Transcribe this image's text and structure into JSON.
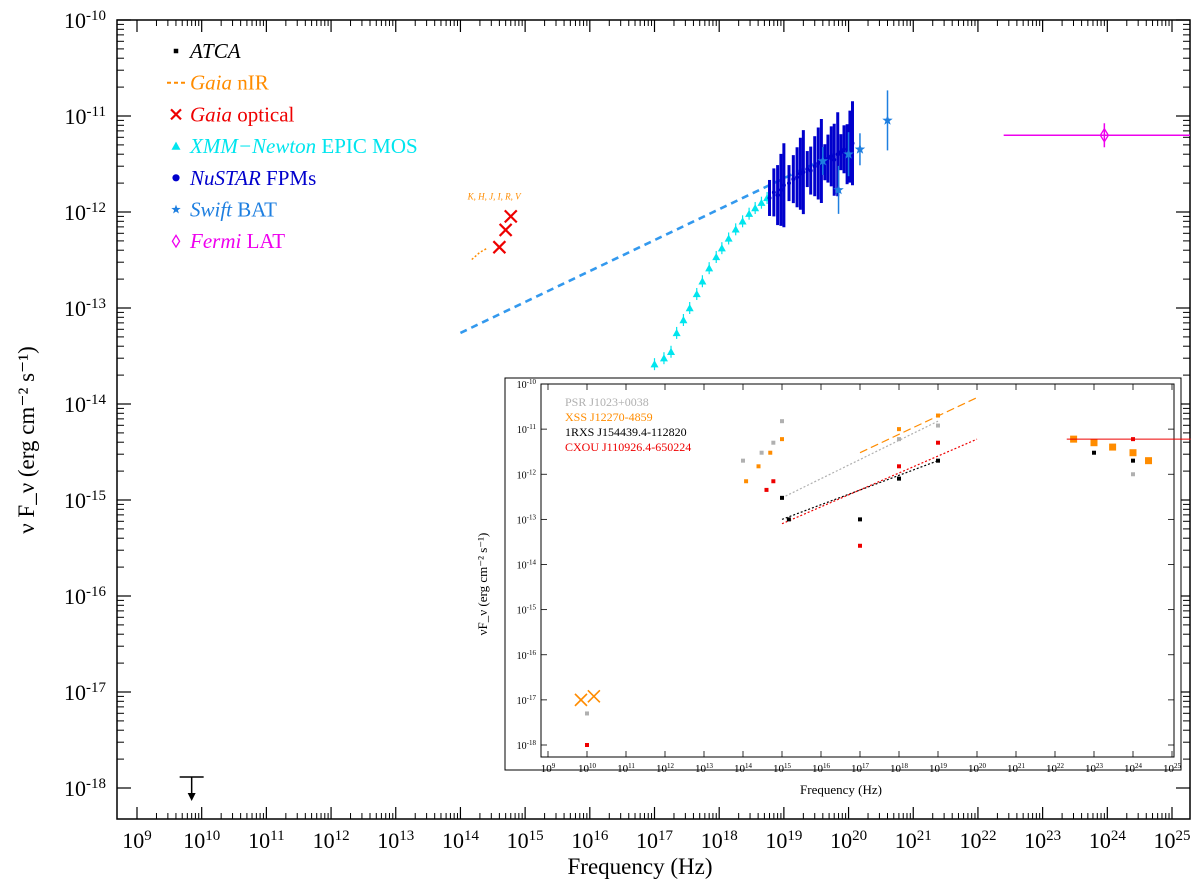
{
  "chart_data": [
    {
      "type": "scatter",
      "title": "",
      "xlabel": "Frequency (Hz)",
      "ylabel": "ν F_ν (erg cm⁻² s⁻¹)",
      "x_scale": "log",
      "y_scale": "log",
      "xlim": [
        1000000000.0,
        1e+25
      ],
      "ylim": [
        1e-18,
        1e-10
      ],
      "x_ticks": [
        "10^9",
        "10^10",
        "10^11",
        "10^12",
        "10^13",
        "10^14",
        "10^15",
        "10^16",
        "10^17",
        "10^18",
        "10^19",
        "10^20",
        "10^21",
        "10^22",
        "10^23",
        "10^24",
        "10^25"
      ],
      "y_ticks": [
        "10^-18",
        "10^-17",
        "10^-16",
        "10^-15",
        "10^-14",
        "10^-13",
        "10^-12",
        "10^-11",
        "10^-10"
      ],
      "legend_position": "top-left",
      "colors": {
        "atca": "#000000",
        "gaia_nir": "#ff8c00",
        "gaia_opt": "#ee0000",
        "xmm": "#00e5ee",
        "nustar": "#0000cc",
        "swift": "#1e7fe0",
        "fermi": "#ee00ee",
        "fit": "#3399ee"
      },
      "legend": [
        {
          "key": "atca",
          "marker": "square",
          "italic": "ATCA",
          "text": ""
        },
        {
          "key": "gaia_nir",
          "marker": "dash",
          "italic": "Gaia",
          "text": "nIR"
        },
        {
          "key": "gaia_opt",
          "marker": "cross",
          "italic": "Gaia",
          "text": "optical"
        },
        {
          "key": "xmm",
          "marker": "triangle",
          "italic": "XMM−Newton",
          "text": "EPIC MOS"
        },
        {
          "key": "nustar",
          "marker": "circle",
          "italic": "NuSTAR",
          "text": "FPMs"
        },
        {
          "key": "swift",
          "marker": "star",
          "italic": "Swift",
          "text": "BAT"
        },
        {
          "key": "fermi",
          "marker": "diamond",
          "italic": "Fermi",
          "text": "LAT"
        }
      ],
      "band_label": "K, H, J, I, R, V",
      "series": [
        {
          "name": "ATCA",
          "key": "atca",
          "upper_limit": true,
          "points": [
            [
              7000000000.0,
              1.3e-18
            ]
          ]
        },
        {
          "name": "Gaia nIR",
          "key": "gaia_nir",
          "points": [
            [
              150000000000000.0,
              3.2e-13
            ],
            [
              200000000000000.0,
              3.8e-13
            ],
            [
              260000000000000.0,
              4.2e-13
            ]
          ]
        },
        {
          "name": "Gaia optical",
          "key": "gaia_opt",
          "points": [
            [
              400000000000000.0,
              4.3e-13
            ],
            [
              500000000000000.0,
              6.5e-13
            ],
            [
              600000000000000.0,
              9e-13
            ]
          ]
        },
        {
          "name": "XMM-Newton EPIC MOS",
          "key": "xmm",
          "points": [
            [
              1e+17,
              2.6e-14
            ],
            [
              1.4e+17,
              3e-14
            ],
            [
              1.8e+17,
              3.5e-14
            ],
            [
              2.2e+17,
              5.5e-14
            ],
            [
              2.8e+17,
              7.5e-14
            ],
            [
              3.5e+17,
              1e-13
            ],
            [
              4.5e+17,
              1.4e-13
            ],
            [
              5.5e+17,
              1.9e-13
            ],
            [
              7e+17,
              2.6e-13
            ],
            [
              9e+17,
              3.4e-13
            ],
            [
              1.1e+18,
              4.2e-13
            ],
            [
              1.4e+18,
              5.3e-13
            ],
            [
              1.8e+18,
              6.6e-13
            ],
            [
              2.3e+18,
              8e-13
            ],
            [
              2.9e+18,
              9.6e-13
            ],
            [
              3.6e+18,
              1.1e-12
            ],
            [
              4.5e+18,
              1.25e-12
            ],
            [
              5.5e+18,
              1.4e-12
            ]
          ]
        },
        {
          "name": "NuSTAR FPMs",
          "key": "nustar",
          "points": [
            [
              6e+18,
              1.4e-12
            ],
            [
              7e+18,
              1.6e-12
            ],
            [
              8e+18,
              1.5e-12
            ],
            [
              9e+18,
              1.7e-12
            ],
            [
              1e+19,
              1.9e-12
            ],
            [
              1.2e+19,
              2e-12
            ],
            [
              1.4e+19,
              2.2e-12
            ],
            [
              1.6e+19,
              2.3e-12
            ],
            [
              1.8e+19,
              2.5e-12
            ],
            [
              2e+19,
              2.6e-12
            ],
            [
              2.3e+19,
              2.8e-12
            ],
            [
              2.6e+19,
              2.7e-12
            ],
            [
              3e+19,
              3e-12
            ],
            [
              3.4e+19,
              3.2e-12
            ],
            [
              3.8e+19,
              3.4e-12
            ],
            [
              4.3e+19,
              3.3e-12
            ],
            [
              4.8e+19,
              3.6e-12
            ],
            [
              5.4e+19,
              3.8e-12
            ],
            [
              6e+19,
              3.5e-12
            ],
            [
              6.8e+19,
              4e-12
            ],
            [
              7.6e+19,
              4.2e-12
            ],
            [
              8.5e+19,
              4.5e-12
            ],
            [
              9.5e+19,
              4e-12
            ],
            [
              1.05e+20,
              4.8e-12
            ],
            [
              1.15e+20,
              5.2e-12
            ]
          ]
        },
        {
          "name": "Swift BAT",
          "key": "swift",
          "points": [
            [
              4e+19,
              3.4e-12
            ],
            [
              7e+19,
              1.7e-12
            ],
            [
              1e+20,
              4e-12
            ],
            [
              1.5e+20,
              4.5e-12
            ],
            [
              4e+20,
              9e-12
            ]
          ]
        },
        {
          "name": "Fermi LAT",
          "key": "fermi",
          "points": [
            [
              9e+23,
              6.3e-12
            ]
          ],
          "x_range": [
            2.5e+22,
            5e+25
          ]
        }
      ],
      "fit_line": {
        "from": [
          100000000000000.0,
          5.5e-14
        ],
        "to": [
          1.2e+20,
          5e-12
        ]
      }
    },
    {
      "type": "scatter",
      "title": "",
      "xlabel": "Frequency (Hz)",
      "ylabel": "νF_ν (erg cm⁻² s⁻¹)",
      "x_scale": "log",
      "y_scale": "log",
      "xlim": [
        1000000000.0,
        1e+25
      ],
      "ylim": [
        1e-18,
        1e-10
      ],
      "legend_position": "top-left",
      "legend": [
        {
          "text": "PSR J1023+0038",
          "color": "#b0b0b0"
        },
        {
          "text": "XSS J12270-4859",
          "color": "#ff8c00"
        },
        {
          "text": "1RXS J154439.4-112820",
          "color": "#000000"
        },
        {
          "text": "CXOU J110926.4-650224",
          "color": "#ee0000"
        }
      ],
      "series": [
        {
          "name": "PSR J1023+0038",
          "color": "#b0b0b0",
          "points": [
            [
              10000000000.0,
              5e-18
            ],
            [
              100000000000000.0,
              2e-12
            ],
            [
              300000000000000.0,
              3e-12
            ],
            [
              600000000000000.0,
              5e-12
            ],
            [
              1000000000000000.0,
              1.5e-11
            ],
            [
              1e+18,
              6e-12
            ],
            [
              1e+19,
              1.2e-11
            ],
            [
              1e+24,
              1e-12
            ]
          ]
        },
        {
          "name": "XSS J12270-4859",
          "color": "#ff8c00",
          "points": [
            [
              7000000000.0,
              1e-17
            ],
            [
              15000000000.0,
              1.2e-17
            ],
            [
              120000000000000.0,
              7e-13
            ],
            [
              250000000000000.0,
              1.5e-12
            ],
            [
              500000000000000.0,
              3e-12
            ],
            [
              1000000000000000.0,
              6e-12
            ],
            [
              1e+18,
              1e-11
            ],
            [
              1e+19,
              2e-11
            ],
            [
              3e+22,
              6e-12
            ],
            [
              1e+23,
              5e-12
            ],
            [
              3e+23,
              4e-12
            ],
            [
              1e+24,
              3e-12
            ],
            [
              2.5e+24,
              2e-12
            ]
          ]
        },
        {
          "name": "1RXS J154439.4-112820",
          "color": "#000000",
          "points": [
            [
              1000000000000000.0,
              3e-13
            ],
            [
              1500000000000000.0,
              1e-13
            ],
            [
              1e+17,
              1e-13
            ],
            [
              1e+18,
              8e-13
            ],
            [
              1e+19,
              2e-12
            ],
            [
              1e+23,
              3e-12
            ],
            [
              1e+24,
              2e-12
            ]
          ]
        },
        {
          "name": "CXOU J110926.4-650224",
          "color": "#ee0000",
          "points": [
            [
              10000000000.0,
              1e-18
            ],
            [
              400000000000000.0,
              4.5e-13
            ],
            [
              600000000000000.0,
              7e-13
            ],
            [
              1e+17,
              2.6e-14
            ],
            [
              1e+18,
              1.5e-12
            ],
            [
              1e+19,
              5e-12
            ],
            [
              1e+24,
              6e-12
            ]
          ]
        }
      ]
    }
  ]
}
